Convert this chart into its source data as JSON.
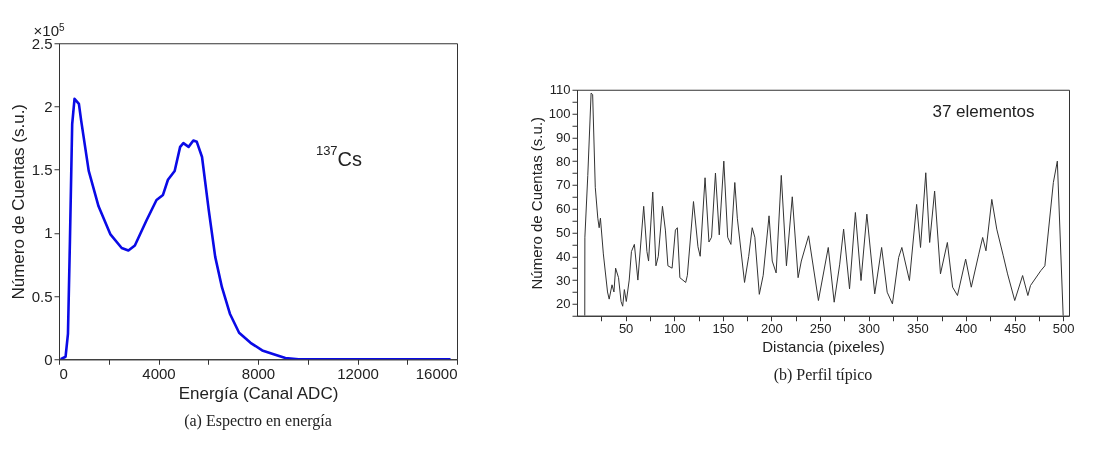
{
  "chart_data": [
    {
      "type": "line",
      "xlabel": "Energía (Canal ADC)",
      "ylabel": "Número de Cuentas (s.u.)",
      "annotations": [
        "×10$^{5}$",
        "$^{137}$Cs",
        "(a) Espectro en energía"
      ],
      "xlim": [
        0,
        16000
      ],
      "ylim": [
        0,
        2.5
      ],
      "xticks": [
        0,
        {
          "value": 2000,
          "label": null
        },
        4000,
        {
          "value": 6000,
          "label": null
        },
        8000,
        {
          "value": 10000,
          "label": null
        },
        12000,
        {
          "value": 14000,
          "label": null
        },
        16000
      ],
      "yticks": [
        0,
        0.5,
        1,
        1.5,
        2,
        2.5
      ],
      "x": [
        66,
        265,
        360,
        440,
        530,
        624,
        800,
        890,
        1195,
        1590,
        2060,
        2520,
        2790,
        3050,
        3520,
        3920,
        4180,
        4380,
        4650,
        4870,
        5000,
        5210,
        5400,
        5540,
        5750,
        6020,
        6280,
        6550,
        6870,
        7240,
        7700,
        8170,
        8630,
        9100,
        9630,
        15740
      ],
      "series": [
        {
          "color": "#0a0ae6",
          "values": [
            0,
            0.02,
            0.2,
            0.94,
            1.86,
            2.06,
            2.02,
            1.89,
            1.49,
            1.21,
            0.99,
            0.88,
            0.86,
            0.9,
            1.1,
            1.26,
            1.3,
            1.42,
            1.49,
            1.68,
            1.71,
            1.68,
            1.73,
            1.72,
            1.6,
            1.18,
            0.81,
            0.57,
            0.36,
            0.21,
            0.13,
            0.07,
            0.04,
            0.01,
            0,
            0
          ]
        }
      ]
    },
    {
      "type": "line",
      "xlabel": "Distancia (pixeles)",
      "ylabel": "Número de Cuentas (s.u.)",
      "annotations": [
        "37 elementos",
        "(b) Perfil típico"
      ],
      "xlim": [
        0,
        506
      ],
      "ylim": [
        15,
        110
      ],
      "xticks": [
        {
          "value": 25,
          "label": null
        },
        50,
        {
          "value": 75,
          "label": null
        },
        100,
        {
          "value": 125,
          "label": null
        },
        150,
        {
          "value": 175,
          "label": null
        },
        200,
        {
          "value": 225,
          "label": null
        },
        250,
        {
          "value": 275,
          "label": null
        },
        300,
        {
          "value": 325,
          "label": null
        },
        350,
        {
          "value": 375,
          "label": null
        },
        400,
        {
          "value": 425,
          "label": null
        },
        450,
        {
          "value": 475,
          "label": null
        },
        500
      ],
      "yticks": [
        {
          "value": 15,
          "label": null
        },
        20,
        {
          "value": 25,
          "label": null
        },
        30,
        {
          "value": 35,
          "label": null
        },
        40,
        {
          "value": 45,
          "label": null
        },
        50,
        {
          "value": 55,
          "label": null
        },
        60,
        {
          "value": 65,
          "label": null
        },
        70,
        {
          "value": 75,
          "label": null
        },
        80,
        {
          "value": 85,
          "label": null
        },
        90,
        {
          "value": 95,
          "label": null
        },
        100,
        {
          "value": 105,
          "label": null
        },
        110
      ],
      "x": [
        8,
        8.1,
        11.1,
        14.5,
        16.1,
        18.8,
        21.4,
        22.8,
        24.1,
        27.1,
        31.4,
        33.1,
        36,
        38,
        39.7,
        42.7,
        45.3,
        47,
        48.7,
        50.7,
        53.7,
        56,
        59,
        62.6,
        68.6,
        71.9,
        73.6,
        77.9,
        81.2,
        83.6,
        87.9,
        90.9,
        93.5,
        97.8,
        101.2,
        103.2,
        105.8,
        111.8,
        113.5,
        119.8,
        124.4,
        126.7,
        131.7,
        135.7,
        138.4,
        142.4,
        146.3,
        151,
        155,
        158.3,
        162.3,
        164.9,
        172.3,
        176.6,
        180.2,
        182.9,
        187.5,
        191.5,
        197.5,
        200.8,
        204.8,
        210.1,
        215.4,
        221.4,
        227.4,
        230.7,
        238.2,
        248.3,
        258.4,
        264.5,
        270.2,
        274.2,
        280.3,
        286.3,
        292.1,
        298.1,
        306.2,
        313.3,
        319,
        324.4,
        330.8,
        334.1,
        341.9,
        349.3,
        353.3,
        358.7,
        362.7,
        367.8,
        373.8,
        380.9,
        386.3,
        391.3,
        399.7,
        405.5,
        413.2,
        417.2,
        420.6,
        426.6,
        431.7,
        438.4,
        442.8,
        450.2,
        458.3,
        463.7,
        466.4,
        477.1,
        481.2,
        489.9,
        494,
        500
      ],
      "series": [
        {
          "color": "#333333",
          "values": [
            15,
            48,
            74,
            108.6,
            108,
            69,
            56,
            52,
            56,
            41,
            25,
            22,
            28,
            25,
            35,
            31,
            21,
            19,
            26,
            21,
            30,
            42,
            45,
            30,
            61,
            42,
            38,
            67,
            36,
            40,
            61,
            51,
            36,
            35,
            51,
            52,
            31,
            29,
            32,
            63,
            44,
            40,
            73,
            46,
            48,
            75,
            49,
            80,
            48,
            45,
            71,
            56,
            29,
            40,
            52,
            48,
            24,
            32,
            57,
            38,
            33,
            74,
            36,
            65,
            31,
            38,
            48.6,
            21.4,
            43.7,
            20.7,
            36.7,
            51.4,
            26.3,
            58.4,
            29.8,
            57.7,
            24.2,
            43.7,
            24.9,
            20,
            39.5,
            43.7,
            29.8,
            61.8,
            43.7,
            75.1,
            45.8,
            67.4,
            32.6,
            45.8,
            27,
            23.5,
            38.8,
            27,
            40.9,
            47.9,
            42.3,
            63.9,
            51.4,
            40.2,
            32.6,
            21.4,
            31.9,
            23.5,
            27.7,
            34,
            36,
            71,
            80,
            15
          ]
        }
      ]
    }
  ]
}
